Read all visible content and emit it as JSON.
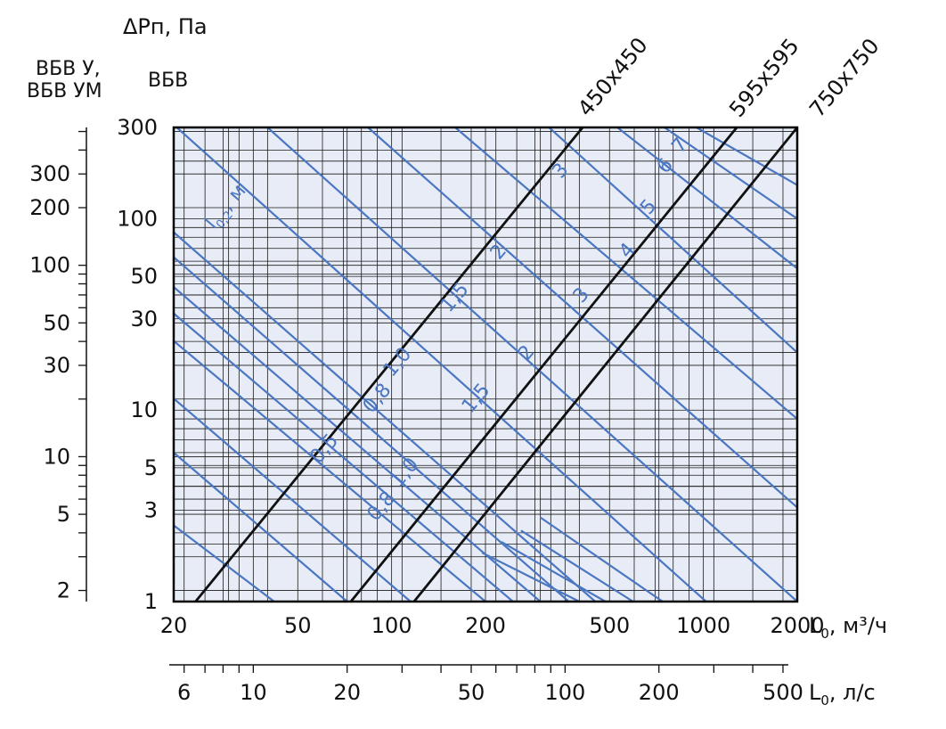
{
  "chart_data": {
    "type": "line",
    "x_scale": "log",
    "y_scale": "log",
    "grid": true,
    "plot_background": "#e8ecf6",
    "line_color_size": "#111111",
    "line_color_throw": "#4a76c2",
    "title": "ΔPп, Па",
    "y_header_outer": [
      "ВБВ У,",
      "ВБВ УМ"
    ],
    "y_header_inner": "ВБВ",
    "x_axis": {
      "label": "L0, м³/ч",
      "label_main": "L",
      "label_sub": "0",
      "label_unit": ", м³/ч",
      "range": [
        20,
        2000
      ],
      "tick_values": [
        20,
        50,
        100,
        200,
        500,
        1000,
        2000
      ],
      "tick_labels": [
        "20",
        "50",
        "100",
        "200",
        "500",
        "1000",
        "2000"
      ]
    },
    "x_axis_secondary": {
      "label": "L0, л/с",
      "label_main": "L",
      "label_sub": "0",
      "label_unit": ", л/с",
      "range": [
        5.56,
        555.6
      ],
      "tick_values": [
        6,
        10,
        20,
        50,
        100,
        200,
        500
      ],
      "tick_labels": [
        "6",
        "10",
        "20",
        "50",
        "100",
        "200",
        "500"
      ]
    },
    "y_axis_inner": {
      "label": "ВБВ",
      "range": [
        1,
        300
      ],
      "tick_values": [
        1,
        3,
        5,
        10,
        30,
        50,
        100,
        300
      ],
      "tick_labels": [
        "1",
        "3",
        "5",
        "10",
        "30",
        "50",
        "100",
        "300"
      ]
    },
    "y_axis_outer": {
      "label": "ВБВ У, ВБВ УМ",
      "range": [
        1.75,
        525
      ],
      "tick_values": [
        2,
        5,
        10,
        30,
        50,
        100,
        200,
        300
      ],
      "tick_labels": [
        "2",
        "5",
        "10",
        "30",
        "50",
        "100",
        "200",
        "300"
      ]
    },
    "size_series": [
      {
        "name": "450x450",
        "x": [
          23.5,
          410
        ],
        "y": [
          1,
          300
        ]
      },
      {
        "name": "595x595",
        "x": [
          74,
          1280
        ],
        "y": [
          1,
          300
        ]
      },
      {
        "name": "750x750",
        "x": [
          118,
          2000
        ],
        "y": [
          1,
          300
        ]
      }
    ],
    "throw_lines": [
      {
        "x": [
          20,
          42
        ],
        "y": [
          2.5,
          1
        ]
      },
      {
        "x": [
          20,
          72
        ],
        "y": [
          6,
          1
        ]
      },
      {
        "x": [
          20,
          115
        ],
        "y": [
          11.5,
          1
        ]
      },
      {
        "x": [
          20,
          200
        ],
        "y": [
          23,
          1
        ]
      },
      {
        "x": [
          20,
          245
        ],
        "y": [
          32,
          1
        ]
      },
      {
        "x": [
          20,
          300
        ],
        "y": [
          44,
          1
        ]
      },
      {
        "x": [
          20,
          370
        ],
        "y": [
          63,
          1
        ]
      },
      {
        "x": [
          20,
          450
        ],
        "y": [
          85,
          1
        ]
      },
      {
        "x": [
          20,
          1020
        ],
        "y": [
          310,
          1
        ]
      },
      {
        "x": [
          40,
          2000
        ],
        "y": [
          300,
          1
        ]
      },
      {
        "x": [
          84,
          2000
        ],
        "y": [
          300,
          3.1
        ]
      },
      {
        "x": [
          160,
          2000
        ],
        "y": [
          300,
          9
        ]
      },
      {
        "x": [
          320,
          2000
        ],
        "y": [
          300,
          20
        ]
      },
      {
        "x": [
          530,
          2000
        ],
        "y": [
          300,
          55
        ]
      },
      {
        "x": [
          750,
          2000
        ],
        "y": [
          300,
          100
        ]
      },
      {
        "x": [
          950,
          2000
        ],
        "y": [
          300,
          150
        ]
      },
      {
        "x": [
          300,
          740
        ],
        "y": [
          2.75,
          1
        ]
      },
      {
        "x": [
          260,
          595
        ],
        "y": [
          2.35,
          1
        ]
      },
      {
        "x": [
          225,
          485
        ],
        "y": [
          2.05,
          1
        ]
      },
      {
        "x": [
          195,
          400
        ],
        "y": [
          1.8,
          1
        ]
      }
    ],
    "throw_labels_450": [
      {
        "text": "0,5",
        "x": 63,
        "y": 6
      },
      {
        "text": "0,8",
        "x": 93,
        "y": 11
      },
      {
        "text": "1,0",
        "x": 108,
        "y": 17
      },
      {
        "text": "1,5",
        "x": 165,
        "y": 37
      },
      {
        "text": "2",
        "x": 228,
        "y": 64
      },
      {
        "text": "3",
        "x": 360,
        "y": 170
      }
    ],
    "throw_labels_595": [
      {
        "text": "0,8",
        "x": 96,
        "y": 3
      },
      {
        "text": "1,0",
        "x": 114,
        "y": 4.5
      },
      {
        "text": "1,5",
        "x": 193,
        "y": 11
      },
      {
        "text": "2",
        "x": 280,
        "y": 19
      },
      {
        "text": "3",
        "x": 420,
        "y": 38
      },
      {
        "text": "4",
        "x": 590,
        "y": 65
      },
      {
        "text": "5",
        "x": 690,
        "y": 110
      },
      {
        "text": "6",
        "x": 780,
        "y": 180
      },
      {
        "text": "7",
        "x": 870,
        "y": 230
      }
    ],
    "throw_axis_label": {
      "main": "l",
      "sub": "0,2",
      "unit": ", м"
    }
  }
}
